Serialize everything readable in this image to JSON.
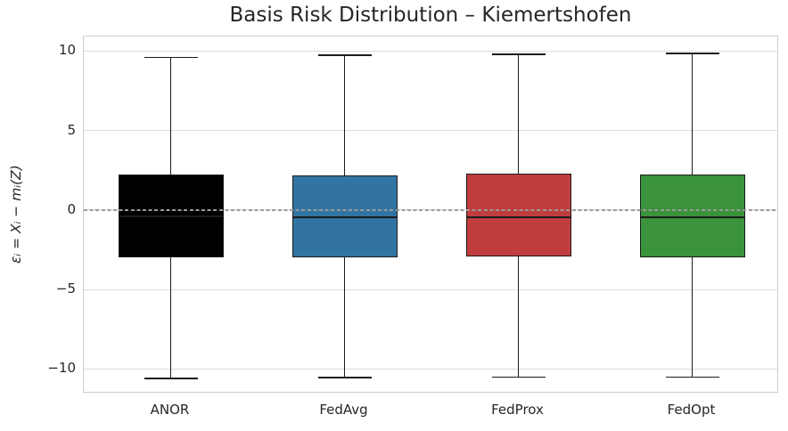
{
  "chart_data": {
    "type": "boxplot",
    "title": "Basis Risk Distribution – Kiemertshofen",
    "xlabel": "",
    "ylabel": "εᵢ = Xᵢ − mᵢ(Z)",
    "categories": [
      "ANOR",
      "FedAvg",
      "FedProx",
      "FedOpt"
    ],
    "series": [
      {
        "name": "ANOR",
        "whisker_low": -10.6,
        "q1": -2.95,
        "median": -0.4,
        "q3": 2.25,
        "whisker_high": 9.6,
        "fill_color": "#000000"
      },
      {
        "name": "FedAvg",
        "whisker_low": -10.55,
        "q1": -2.95,
        "median": -0.45,
        "q3": 2.2,
        "whisker_high": 9.75,
        "fill_color": "#3274a1"
      },
      {
        "name": "FedProx",
        "whisker_low": -10.5,
        "q1": -2.9,
        "median": -0.45,
        "q3": 2.3,
        "whisker_high": 9.8,
        "fill_color": "#c03d3e"
      },
      {
        "name": "FedOpt",
        "whisker_low": -10.5,
        "q1": -2.95,
        "median": -0.45,
        "q3": 2.25,
        "whisker_high": 9.85,
        "fill_color": "#3a923a"
      }
    ],
    "yticks": [
      {
        "value": 10,
        "label": "10"
      },
      {
        "value": 5,
        "label": "5"
      },
      {
        "value": 0,
        "label": "0"
      },
      {
        "value": -5,
        "label": "−5"
      },
      {
        "value": -10,
        "label": "−10"
      }
    ],
    "ylim": [
      -11.55,
      10.92
    ],
    "zero_line": 0,
    "grid": true,
    "legend": "none",
    "style_colors": {
      "box_edge": "#1c1c1c",
      "whisker": "#1c1c1c",
      "median": "#1c1c1c",
      "grid": "#dcdcdc",
      "spine": "#cccccc",
      "zero_dash": "#9b9b9b",
      "text": "#262626",
      "background": "#ffffff"
    }
  }
}
